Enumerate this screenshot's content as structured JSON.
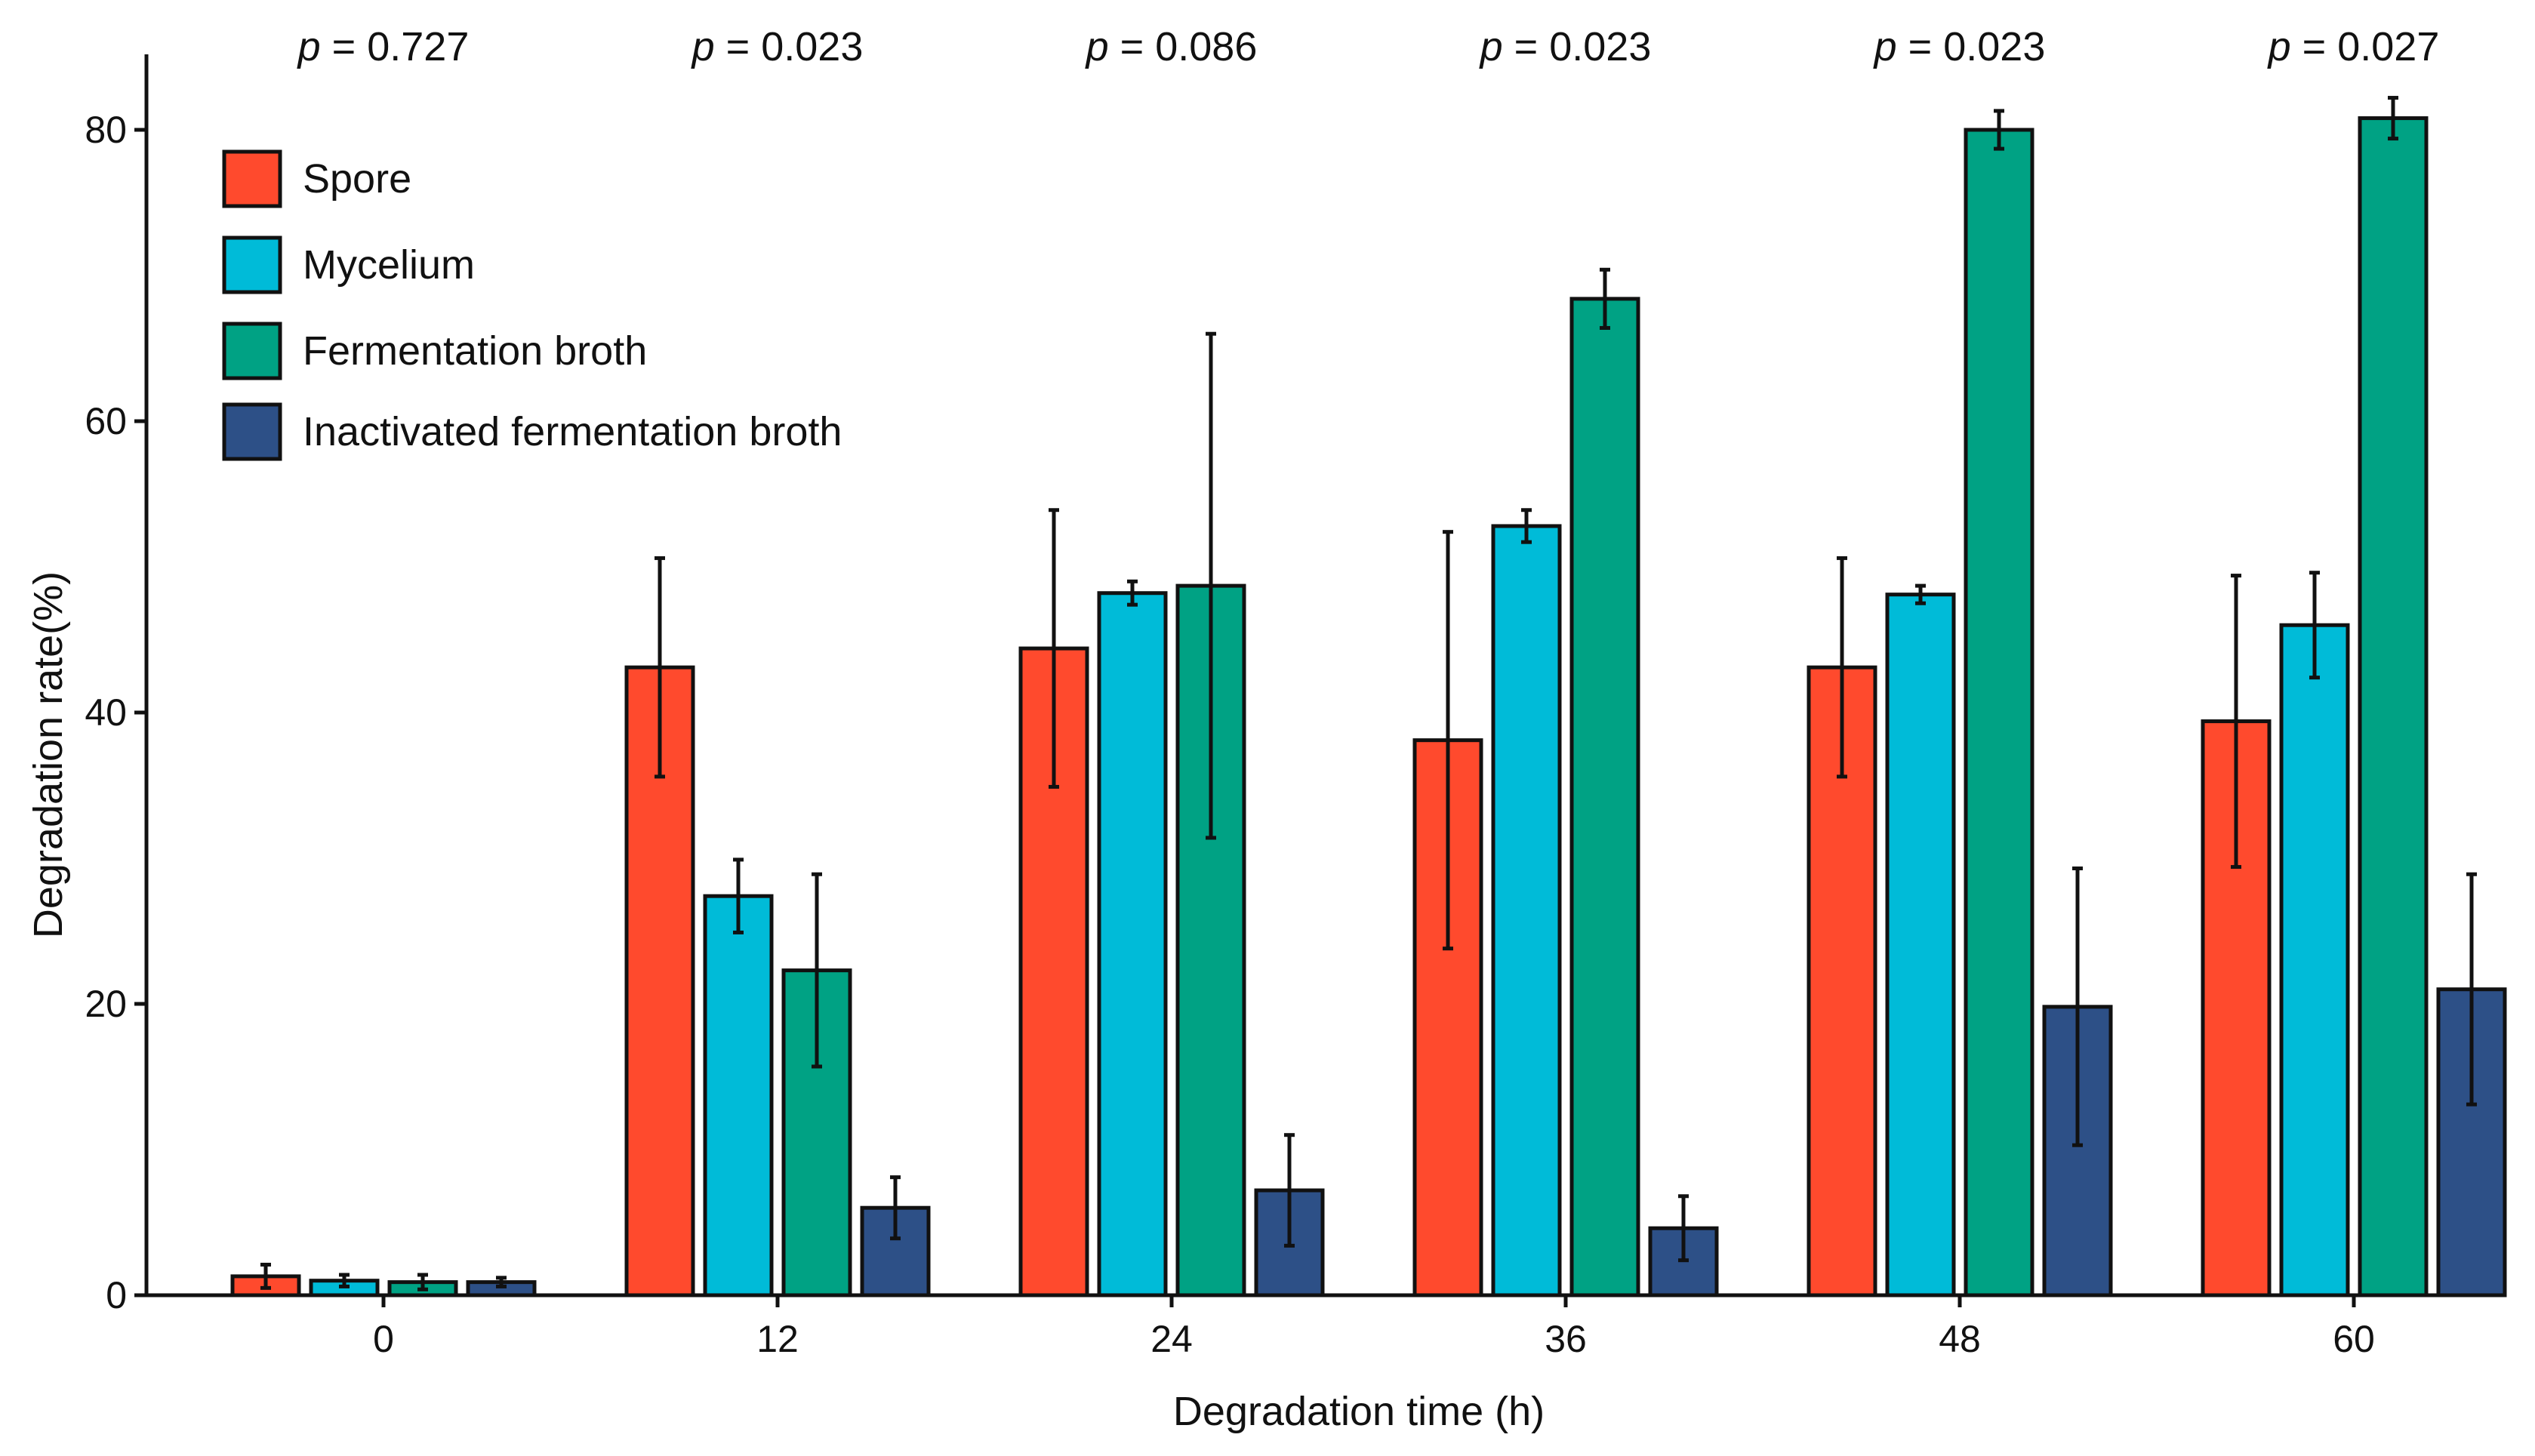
{
  "chart_data": {
    "type": "bar",
    "title": "",
    "xlabel": "Degradation time (h)",
    "ylabel": "Degradation rate(%)",
    "ylim": [
      0,
      84
    ],
    "yticks": [
      0,
      20,
      40,
      60,
      80
    ],
    "categories": [
      "0",
      "12",
      "24",
      "36",
      "48",
      "60"
    ],
    "p_values": [
      {
        "prefix": "p",
        "text": " = 0.727"
      },
      {
        "prefix": "p",
        "text": " = 0.023"
      },
      {
        "prefix": "p",
        "text": " = 0.086"
      },
      {
        "prefix": "p",
        "text": " = 0.023"
      },
      {
        "prefix": "p",
        "text": " = 0.023"
      },
      {
        "prefix": "p",
        "text": " = 0.027"
      }
    ],
    "legend_position": "top-left",
    "grid": false,
    "series": [
      {
        "name": "Spore",
        "color": "#FF4A2D",
        "values": [
          1.3,
          43.1,
          44.4,
          38.1,
          43.1,
          39.4
        ],
        "errors": [
          0.8,
          7.5,
          9.5,
          14.3,
          7.5,
          10.0
        ]
      },
      {
        "name": "Mycelium",
        "color": "#00BBD8",
        "values": [
          1.0,
          27.4,
          48.2,
          52.8,
          48.1,
          46.0
        ],
        "errors": [
          0.4,
          2.5,
          0.8,
          1.1,
          0.6,
          3.6
        ]
      },
      {
        "name": "Fermentation broth",
        "color": "#00A284",
        "values": [
          0.9,
          22.3,
          48.7,
          68.4,
          80.0,
          80.8
        ],
        "errors": [
          0.5,
          6.6,
          17.3,
          2.0,
          1.3,
          1.4
        ]
      },
      {
        "name": "Inactivated fermentation broth",
        "color": "#2D5087",
        "values": [
          0.9,
          6.0,
          7.2,
          4.6,
          19.8,
          21.0
        ],
        "errors": [
          0.3,
          2.1,
          3.8,
          2.2,
          9.5,
          7.9
        ]
      }
    ]
  }
}
